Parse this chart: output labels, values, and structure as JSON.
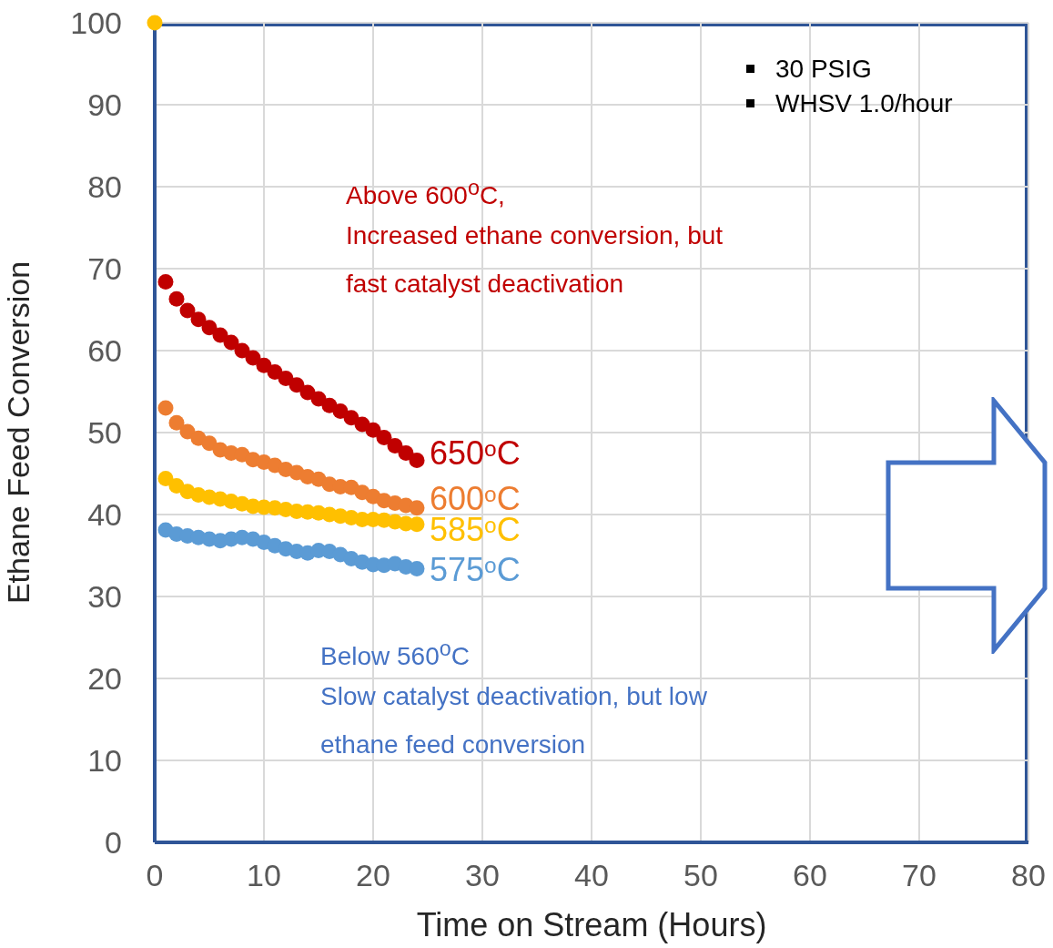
{
  "chart_data": {
    "type": "scatter",
    "xlabel": "Time on Stream (Hours)",
    "ylabel": "Ethane Feed Conversion",
    "x": [
      1,
      2,
      3,
      4,
      5,
      6,
      7,
      8,
      9,
      10,
      11,
      12,
      13,
      14,
      15,
      16,
      17,
      18,
      19,
      20,
      21,
      22,
      23,
      24
    ],
    "series": [
      {
        "name": "650ᵒC",
        "color": "#c00000",
        "values": [
          68.4,
          66.3,
          64.9,
          63.8,
          62.8,
          61.9,
          61.0,
          60.0,
          59.1,
          58.2,
          57.4,
          56.6,
          55.8,
          54.9,
          54.1,
          53.3,
          52.6,
          51.8,
          51.0,
          50.3,
          49.4,
          48.4,
          47.5,
          46.6
        ]
      },
      {
        "name": "600ᵒC",
        "color": "#ed7d31",
        "values": [
          53.0,
          51.2,
          50.1,
          49.3,
          48.7,
          47.9,
          47.5,
          47.3,
          46.7,
          46.4,
          46.0,
          45.5,
          45.1,
          44.6,
          44.3,
          43.7,
          43.4,
          43.3,
          42.7,
          42.2,
          41.7,
          41.4,
          41.1,
          40.8
        ]
      },
      {
        "name": "585ᵒC",
        "color": "#ffc000",
        "values": [
          44.4,
          43.5,
          42.8,
          42.4,
          42.1,
          41.9,
          41.6,
          41.3,
          41.0,
          40.9,
          40.8,
          40.6,
          40.4,
          40.3,
          40.2,
          40.0,
          39.8,
          39.6,
          39.4,
          39.4,
          39.3,
          39.1,
          38.9,
          38.8
        ]
      },
      {
        "name": "575ᵒC",
        "color": "#5b9bd5",
        "values": [
          38.1,
          37.6,
          37.4,
          37.2,
          37.0,
          36.8,
          37.0,
          37.2,
          37.0,
          36.6,
          36.2,
          35.8,
          35.5,
          35.3,
          35.6,
          35.5,
          35.1,
          34.6,
          34.2,
          33.9,
          33.8,
          34.0,
          33.6,
          33.4
        ]
      },
      {
        "color": "#ffc000",
        "x": [
          0
        ],
        "values": [
          100
        ]
      }
    ],
    "xlim": [
      0,
      80
    ],
    "xticks": [
      0,
      10,
      20,
      30,
      40,
      50,
      60,
      70,
      80
    ],
    "ylim": [
      0,
      100
    ],
    "yticks": [
      0,
      10,
      20,
      30,
      40,
      50,
      60,
      70,
      80,
      90,
      100
    ],
    "grid": true,
    "marker": "circle",
    "legend": false,
    "annotations": [
      "30 PSIG",
      "WHSV 1.0/hour",
      "Above 600$^{o}$C,",
      "Increased ethane conversion, but",
      "fast catalyst deactivation",
      "Below 560$^{o}$C",
      "Slow catalyst deactivation, but low",
      "ethane feed conversion"
    ]
  }
}
